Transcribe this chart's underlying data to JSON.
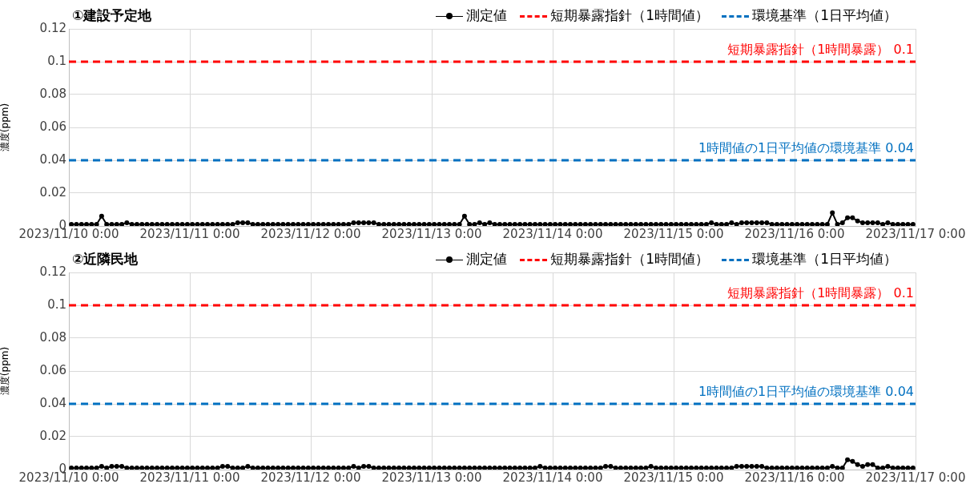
{
  "chart_data": [
    {
      "type": "line",
      "title": "①建設予定地",
      "ylabel": "濃度(ppm)",
      "legend": "top right",
      "grid": true,
      "marker": "circle",
      "x": [
        "2023-11-10T00:30",
        "2023-11-10T01:30",
        "2023-11-10T02:30",
        "2023-11-10T03:30",
        "2023-11-10T04:30",
        "2023-11-10T05:30",
        "2023-11-10T06:30",
        "2023-11-10T07:30",
        "2023-11-10T08:30",
        "2023-11-10T09:30",
        "2023-11-10T10:30",
        "2023-11-10T11:30",
        "2023-11-10T12:30",
        "2023-11-10T13:30",
        "2023-11-10T14:30",
        "2023-11-10T15:30",
        "2023-11-10T16:30",
        "2023-11-10T17:30",
        "2023-11-10T18:30",
        "2023-11-10T19:30",
        "2023-11-10T20:30",
        "2023-11-10T21:30",
        "2023-11-10T22:30",
        "2023-11-10T23:30",
        "2023-11-11T00:30",
        "2023-11-11T01:30",
        "2023-11-11T02:30",
        "2023-11-11T03:30",
        "2023-11-11T04:30",
        "2023-11-11T05:30",
        "2023-11-11T06:30",
        "2023-11-11T07:30",
        "2023-11-11T08:30",
        "2023-11-11T09:30",
        "2023-11-11T10:30",
        "2023-11-11T11:30",
        "2023-11-11T12:30",
        "2023-11-11T13:30",
        "2023-11-11T14:30",
        "2023-11-11T15:30",
        "2023-11-11T16:30",
        "2023-11-11T17:30",
        "2023-11-11T18:30",
        "2023-11-11T19:30",
        "2023-11-11T20:30",
        "2023-11-11T21:30",
        "2023-11-11T22:30",
        "2023-11-11T23:30",
        "2023-11-12T00:30",
        "2023-11-12T01:30",
        "2023-11-12T02:30",
        "2023-11-12T03:30",
        "2023-11-12T04:30",
        "2023-11-12T05:30",
        "2023-11-12T06:30",
        "2023-11-12T07:30",
        "2023-11-12T08:30",
        "2023-11-12T09:30",
        "2023-11-12T10:30",
        "2023-11-12T11:30",
        "2023-11-12T12:30",
        "2023-11-12T13:30",
        "2023-11-12T14:30",
        "2023-11-12T15:30",
        "2023-11-12T16:30",
        "2023-11-12T17:30",
        "2023-11-12T18:30",
        "2023-11-12T19:30",
        "2023-11-12T20:30",
        "2023-11-12T21:30",
        "2023-11-12T22:30",
        "2023-11-12T23:30",
        "2023-11-13T00:30",
        "2023-11-13T01:30",
        "2023-11-13T02:30",
        "2023-11-13T03:30",
        "2023-11-13T04:30",
        "2023-11-13T05:30",
        "2023-11-13T06:30",
        "2023-11-13T07:30",
        "2023-11-13T08:30",
        "2023-11-13T09:30",
        "2023-11-13T10:30",
        "2023-11-13T11:30",
        "2023-11-13T12:30",
        "2023-11-13T13:30",
        "2023-11-13T14:30",
        "2023-11-13T15:30",
        "2023-11-13T16:30",
        "2023-11-13T17:30",
        "2023-11-13T18:30",
        "2023-11-13T19:30",
        "2023-11-13T20:30",
        "2023-11-13T21:30",
        "2023-11-13T22:30",
        "2023-11-13T23:30",
        "2023-11-14T00:30",
        "2023-11-14T01:30",
        "2023-11-14T02:30",
        "2023-11-14T03:30",
        "2023-11-14T04:30",
        "2023-11-14T05:30",
        "2023-11-14T06:30",
        "2023-11-14T07:30",
        "2023-11-14T08:30",
        "2023-11-14T09:30",
        "2023-11-14T10:30",
        "2023-11-14T11:30",
        "2023-11-14T12:30",
        "2023-11-14T13:30",
        "2023-11-14T14:30",
        "2023-11-14T15:30",
        "2023-11-14T16:30",
        "2023-11-14T17:30",
        "2023-11-14T18:30",
        "2023-11-14T19:30",
        "2023-11-14T20:30",
        "2023-11-14T21:30",
        "2023-11-14T22:30",
        "2023-11-14T23:30",
        "2023-11-15T00:30",
        "2023-11-15T01:30",
        "2023-11-15T02:30",
        "2023-11-15T03:30",
        "2023-11-15T04:30",
        "2023-11-15T05:30",
        "2023-11-15T06:30",
        "2023-11-15T07:30",
        "2023-11-15T08:30",
        "2023-11-15T09:30",
        "2023-11-15T10:30",
        "2023-11-15T11:30",
        "2023-11-15T12:30",
        "2023-11-15T13:30",
        "2023-11-15T14:30",
        "2023-11-15T15:30",
        "2023-11-15T16:30",
        "2023-11-15T17:30",
        "2023-11-15T18:30",
        "2023-11-15T19:30",
        "2023-11-15T20:30",
        "2023-11-15T21:30",
        "2023-11-15T22:30",
        "2023-11-15T23:30",
        "2023-11-16T00:30",
        "2023-11-16T01:30",
        "2023-11-16T02:30",
        "2023-11-16T03:30",
        "2023-11-16T04:30",
        "2023-11-16T05:30",
        "2023-11-16T06:30",
        "2023-11-16T07:30",
        "2023-11-16T08:30",
        "2023-11-16T09:30",
        "2023-11-16T10:30",
        "2023-11-16T11:30",
        "2023-11-16T12:30",
        "2023-11-16T13:30",
        "2023-11-16T14:30",
        "2023-11-16T15:30",
        "2023-11-16T16:30",
        "2023-11-16T17:30",
        "2023-11-16T18:30",
        "2023-11-16T19:30",
        "2023-11-16T20:30",
        "2023-11-16T21:30",
        "2023-11-16T22:30",
        "2023-11-16T23:30"
      ],
      "series": [
        {
          "name": "測定値",
          "type": "line",
          "color": "#000000",
          "values": [
            0.001,
            0.001,
            0.001,
            0.001,
            0.001,
            0.001,
            0.006,
            0.001,
            0.001,
            0.001,
            0.001,
            0.002,
            0.001,
            0.001,
            0.001,
            0.001,
            0.001,
            0.001,
            0.001,
            0.001,
            0.001,
            0.001,
            0.001,
            0.001,
            0.001,
            0.001,
            0.001,
            0.001,
            0.001,
            0.001,
            0.001,
            0.001,
            0.001,
            0.002,
            0.002,
            0.002,
            0.001,
            0.001,
            0.001,
            0.001,
            0.001,
            0.001,
            0.001,
            0.001,
            0.001,
            0.001,
            0.001,
            0.001,
            0.001,
            0.001,
            0.001,
            0.001,
            0.001,
            0.001,
            0.001,
            0.001,
            0.002,
            0.002,
            0.002,
            0.002,
            0.002,
            0.001,
            0.001,
            0.001,
            0.001,
            0.001,
            0.001,
            0.001,
            0.001,
            0.001,
            0.001,
            0.001,
            0.001,
            0.001,
            0.001,
            0.001,
            0.001,
            0.001,
            0.006,
            0.001,
            0.001,
            0.002,
            0.001,
            0.002,
            0.001,
            0.001,
            0.001,
            0.001,
            0.001,
            0.001,
            0.001,
            0.001,
            0.001,
            0.001,
            0.001,
            0.001,
            0.001,
            0.001,
            0.001,
            0.001,
            0.001,
            0.001,
            0.001,
            0.001,
            0.001,
            0.001,
            0.001,
            0.001,
            0.001,
            0.001,
            0.001,
            0.001,
            0.001,
            0.001,
            0.001,
            0.001,
            0.001,
            0.001,
            0.001,
            0.001,
            0.001,
            0.001,
            0.001,
            0.001,
            0.001,
            0.001,
            0.001,
            0.002,
            0.001,
            0.001,
            0.001,
            0.002,
            0.001,
            0.002,
            0.002,
            0.002,
            0.002,
            0.002,
            0.002,
            0.001,
            0.001,
            0.001,
            0.001,
            0.001,
            0.001,
            0.001,
            0.001,
            0.001,
            0.001,
            0.001,
            0.001,
            0.008,
            0.001,
            0.002,
            0.005,
            0.005,
            0.003,
            0.002,
            0.002,
            0.002,
            0.002,
            0.001,
            0.002,
            0.001,
            0.001,
            0.001,
            0.001,
            0.001
          ]
        },
        {
          "name": "短期暴露指針（1時間値）",
          "type": "line",
          "color": "#ff0000",
          "line_style": "dashed",
          "marker": "none",
          "x": [
            "2023-11-10T00:00",
            "2023-11-17T00:00"
          ],
          "values": [
            0.1,
            0.1
          ]
        },
        {
          "name": "環境基準（1日平均値）",
          "type": "line",
          "color": "#0070c0",
          "line_style": "dashed",
          "marker": "none",
          "x": [
            "2023-11-10T00:00",
            "2023-11-17T00:00"
          ],
          "values": [
            0.04,
            0.04
          ]
        }
      ],
      "annotations": [
        {
          "text": "短期暴露指針（1時間暴露） 0.1",
          "x": "2023-11-17T00:00",
          "y": 0.1
        },
        {
          "text": "1時間値の1日平均値の環境基準 0.04",
          "x": "2023-11-17T00:00",
          "y": 0.04
        }
      ],
      "xlim": [
        "2023-11-10T00:00",
        "2023-11-17T00:00"
      ],
      "xticks": [
        {
          "value": "2023-11-10T00:00",
          "label": "2023/11/10 0:00"
        },
        {
          "value": "2023-11-11T00:00",
          "label": "2023/11/11 0:00"
        },
        {
          "value": "2023-11-12T00:00",
          "label": "2023/11/12 0:00"
        },
        {
          "value": "2023-11-13T00:00",
          "label": "2023/11/13 0:00"
        },
        {
          "value": "2023-11-14T00:00",
          "label": "2023/11/14 0:00"
        },
        {
          "value": "2023-11-15T00:00",
          "label": "2023/11/15 0:00"
        },
        {
          "value": "2023-11-16T00:00",
          "label": "2023/11/16 0:00"
        },
        {
          "value": "2023-11-17T00:00",
          "label": "2023/11/17 0:00"
        }
      ],
      "ylim": [
        0,
        0.12
      ],
      "yticks": [
        0,
        0.02,
        0.04,
        0.06,
        0.08,
        0.1,
        0.12
      ]
    },
    {
      "type": "line",
      "title": "②近隣民地",
      "ylabel": "濃度(ppm)",
      "legend": "top right",
      "grid": true,
      "marker": "circle",
      "x": [
        "2023-11-10T00:30",
        "2023-11-10T01:30",
        "2023-11-10T02:30",
        "2023-11-10T03:30",
        "2023-11-10T04:30",
        "2023-11-10T05:30",
        "2023-11-10T06:30",
        "2023-11-10T07:30",
        "2023-11-10T08:30",
        "2023-11-10T09:30",
        "2023-11-10T10:30",
        "2023-11-10T11:30",
        "2023-11-10T12:30",
        "2023-11-10T13:30",
        "2023-11-10T14:30",
        "2023-11-10T15:30",
        "2023-11-10T16:30",
        "2023-11-10T17:30",
        "2023-11-10T18:30",
        "2023-11-10T19:30",
        "2023-11-10T20:30",
        "2023-11-10T21:30",
        "2023-11-10T22:30",
        "2023-11-10T23:30",
        "2023-11-11T00:30",
        "2023-11-11T01:30",
        "2023-11-11T02:30",
        "2023-11-11T03:30",
        "2023-11-11T04:30",
        "2023-11-11T05:30",
        "2023-11-11T06:30",
        "2023-11-11T07:30",
        "2023-11-11T08:30",
        "2023-11-11T09:30",
        "2023-11-11T10:30",
        "2023-11-11T11:30",
        "2023-11-11T12:30",
        "2023-11-11T13:30",
        "2023-11-11T14:30",
        "2023-11-11T15:30",
        "2023-11-11T16:30",
        "2023-11-11T17:30",
        "2023-11-11T18:30",
        "2023-11-11T19:30",
        "2023-11-11T20:30",
        "2023-11-11T21:30",
        "2023-11-11T22:30",
        "2023-11-11T23:30",
        "2023-11-12T00:30",
        "2023-11-12T01:30",
        "2023-11-12T02:30",
        "2023-11-12T03:30",
        "2023-11-12T04:30",
        "2023-11-12T05:30",
        "2023-11-12T06:30",
        "2023-11-12T07:30",
        "2023-11-12T08:30",
        "2023-11-12T09:30",
        "2023-11-12T10:30",
        "2023-11-12T11:30",
        "2023-11-12T12:30",
        "2023-11-12T13:30",
        "2023-11-12T14:30",
        "2023-11-12T15:30",
        "2023-11-12T16:30",
        "2023-11-12T17:30",
        "2023-11-12T18:30",
        "2023-11-12T19:30",
        "2023-11-12T20:30",
        "2023-11-12T21:30",
        "2023-11-12T22:30",
        "2023-11-12T23:30",
        "2023-11-13T00:30",
        "2023-11-13T01:30",
        "2023-11-13T02:30",
        "2023-11-13T03:30",
        "2023-11-13T04:30",
        "2023-11-13T05:30",
        "2023-11-13T06:30",
        "2023-11-13T07:30",
        "2023-11-13T08:30",
        "2023-11-13T09:30",
        "2023-11-13T10:30",
        "2023-11-13T11:30",
        "2023-11-13T12:30",
        "2023-11-13T13:30",
        "2023-11-13T14:30",
        "2023-11-13T15:30",
        "2023-11-13T16:30",
        "2023-11-13T17:30",
        "2023-11-13T18:30",
        "2023-11-13T19:30",
        "2023-11-13T20:30",
        "2023-11-13T21:30",
        "2023-11-13T22:30",
        "2023-11-13T23:30",
        "2023-11-14T00:30",
        "2023-11-14T01:30",
        "2023-11-14T02:30",
        "2023-11-14T03:30",
        "2023-11-14T04:30",
        "2023-11-14T05:30",
        "2023-11-14T06:30",
        "2023-11-14T07:30",
        "2023-11-14T08:30",
        "2023-11-14T09:30",
        "2023-11-14T10:30",
        "2023-11-14T11:30",
        "2023-11-14T12:30",
        "2023-11-14T13:30",
        "2023-11-14T14:30",
        "2023-11-14T15:30",
        "2023-11-14T16:30",
        "2023-11-14T17:30",
        "2023-11-14T18:30",
        "2023-11-14T19:30",
        "2023-11-14T20:30",
        "2023-11-14T21:30",
        "2023-11-14T22:30",
        "2023-11-14T23:30",
        "2023-11-15T00:30",
        "2023-11-15T01:30",
        "2023-11-15T02:30",
        "2023-11-15T03:30",
        "2023-11-15T04:30",
        "2023-11-15T05:30",
        "2023-11-15T06:30",
        "2023-11-15T07:30",
        "2023-11-15T08:30",
        "2023-11-15T09:30",
        "2023-11-15T10:30",
        "2023-11-15T11:30",
        "2023-11-15T12:30",
        "2023-11-15T13:30",
        "2023-11-15T14:30",
        "2023-11-15T15:30",
        "2023-11-15T16:30",
        "2023-11-15T17:30",
        "2023-11-15T18:30",
        "2023-11-15T19:30",
        "2023-11-15T20:30",
        "2023-11-15T21:30",
        "2023-11-15T22:30",
        "2023-11-15T23:30",
        "2023-11-16T00:30",
        "2023-11-16T01:30",
        "2023-11-16T02:30",
        "2023-11-16T03:30",
        "2023-11-16T04:30",
        "2023-11-16T05:30",
        "2023-11-16T06:30",
        "2023-11-16T07:30",
        "2023-11-16T08:30",
        "2023-11-16T09:30",
        "2023-11-16T10:30",
        "2023-11-16T11:30",
        "2023-11-16T12:30",
        "2023-11-16T13:30",
        "2023-11-16T14:30",
        "2023-11-16T15:30",
        "2023-11-16T16:30",
        "2023-11-16T17:30",
        "2023-11-16T18:30",
        "2023-11-16T19:30",
        "2023-11-16T20:30",
        "2023-11-16T21:30",
        "2023-11-16T22:30",
        "2023-11-16T23:30"
      ],
      "series": [
        {
          "name": "測定値",
          "type": "line",
          "color": "#000000",
          "values": [
            0.001,
            0.001,
            0.001,
            0.001,
            0.001,
            0.001,
            0.002,
            0.001,
            0.002,
            0.002,
            0.002,
            0.001,
            0.001,
            0.001,
            0.001,
            0.001,
            0.001,
            0.001,
            0.001,
            0.001,
            0.001,
            0.001,
            0.001,
            0.001,
            0.001,
            0.001,
            0.001,
            0.001,
            0.001,
            0.001,
            0.002,
            0.002,
            0.001,
            0.001,
            0.001,
            0.002,
            0.001,
            0.001,
            0.001,
            0.001,
            0.001,
            0.001,
            0.001,
            0.001,
            0.001,
            0.001,
            0.001,
            0.001,
            0.001,
            0.001,
            0.001,
            0.001,
            0.001,
            0.001,
            0.001,
            0.001,
            0.002,
            0.001,
            0.002,
            0.002,
            0.001,
            0.001,
            0.001,
            0.001,
            0.001,
            0.001,
            0.001,
            0.001,
            0.001,
            0.001,
            0.001,
            0.001,
            0.001,
            0.001,
            0.001,
            0.001,
            0.001,
            0.001,
            0.001,
            0.001,
            0.001,
            0.001,
            0.001,
            0.001,
            0.001,
            0.001,
            0.001,
            0.001,
            0.001,
            0.001,
            0.001,
            0.001,
            0.001,
            0.002,
            0.001,
            0.001,
            0.001,
            0.001,
            0.001,
            0.001,
            0.001,
            0.001,
            0.001,
            0.001,
            0.001,
            0.001,
            0.002,
            0.002,
            0.001,
            0.001,
            0.001,
            0.001,
            0.001,
            0.001,
            0.001,
            0.002,
            0.001,
            0.001,
            0.001,
            0.001,
            0.001,
            0.001,
            0.001,
            0.001,
            0.001,
            0.001,
            0.001,
            0.001,
            0.001,
            0.001,
            0.001,
            0.001,
            0.002,
            0.002,
            0.002,
            0.002,
            0.002,
            0.002,
            0.001,
            0.001,
            0.001,
            0.001,
            0.001,
            0.001,
            0.001,
            0.001,
            0.001,
            0.001,
            0.001,
            0.001,
            0.001,
            0.002,
            0.001,
            0.001,
            0.006,
            0.005,
            0.003,
            0.002,
            0.003,
            0.003,
            0.001,
            0.001,
            0.002,
            0.001,
            0.001,
            0.001,
            0.001,
            0.001
          ]
        },
        {
          "name": "短期暴露指針（1時間値）",
          "type": "line",
          "color": "#ff0000",
          "line_style": "dashed",
          "marker": "none",
          "x": [
            "2023-11-10T00:00",
            "2023-11-17T00:00"
          ],
          "values": [
            0.1,
            0.1
          ]
        },
        {
          "name": "環境基準（1日平均値）",
          "type": "line",
          "color": "#0070c0",
          "line_style": "dashed",
          "marker": "none",
          "x": [
            "2023-11-10T00:00",
            "2023-11-17T00:00"
          ],
          "values": [
            0.04,
            0.04
          ]
        }
      ],
      "annotations": [
        {
          "text": "短期暴露指針（1時間暴露） 0.1",
          "x": "2023-11-17T00:00",
          "y": 0.1
        },
        {
          "text": "1時間値の1日平均値の環境基準 0.04",
          "x": "2023-11-17T00:00",
          "y": 0.04
        }
      ],
      "xlim": [
        "2023-11-10T00:00",
        "2023-11-17T00:00"
      ],
      "xticks": [
        {
          "value": "2023-11-10T00:00",
          "label": "2023/11/10 0:00"
        },
        {
          "value": "2023-11-11T00:00",
          "label": "2023/11/11 0:00"
        },
        {
          "value": "2023-11-12T00:00",
          "label": "2023/11/12 0:00"
        },
        {
          "value": "2023-11-13T00:00",
          "label": "2023/11/13 0:00"
        },
        {
          "value": "2023-11-14T00:00",
          "label": "2023/11/14 0:00"
        },
        {
          "value": "2023-11-15T00:00",
          "label": "2023/11/15 0:00"
        },
        {
          "value": "2023-11-16T00:00",
          "label": "2023/11/16 0:00"
        },
        {
          "value": "2023-11-17T00:00",
          "label": "2023/11/17 0:00"
        }
      ],
      "ylim": [
        0,
        0.12
      ],
      "yticks": [
        0,
        0.02,
        0.04,
        0.06,
        0.08,
        0.1,
        0.12
      ]
    }
  ]
}
